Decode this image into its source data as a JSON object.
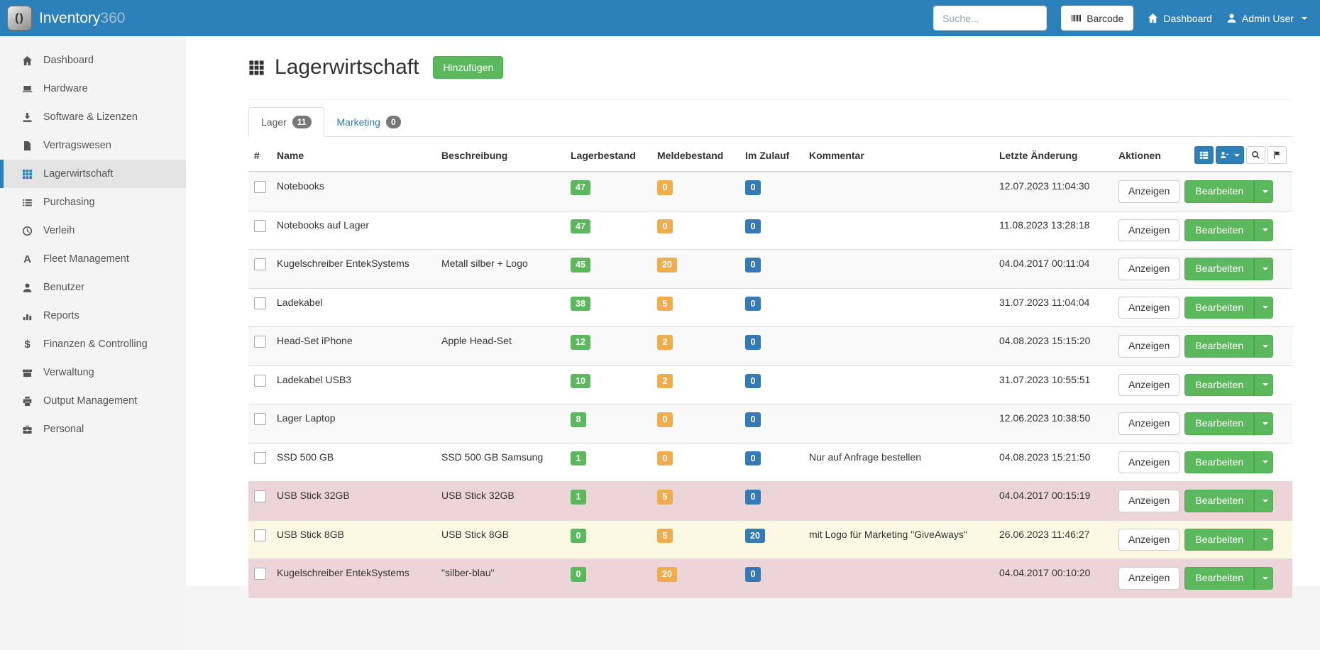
{
  "colors": {
    "navbar": "#2c81ba",
    "accent_green": "#5cb85c",
    "accent_orange": "#f0ad4e",
    "accent_blue": "#337ab7",
    "row_danger": "#ecd4d8",
    "row_warning": "#fcf8e3"
  },
  "navbar": {
    "brand_name": "Inventory",
    "brand_suffix": "360",
    "search_placeholder": "Suche...",
    "barcode_label": "Barcode",
    "dashboard_label": "Dashboard",
    "user_label": "Admin User"
  },
  "sidebar": {
    "items": [
      {
        "label": "Dashboard",
        "icon": "home",
        "active": false
      },
      {
        "label": "Hardware",
        "icon": "laptop",
        "active": false
      },
      {
        "label": "Software & Lizenzen",
        "icon": "download",
        "active": false
      },
      {
        "label": "Vertragswesen",
        "icon": "file",
        "active": false
      },
      {
        "label": "Lagerwirtschaft",
        "icon": "grid",
        "active": true
      },
      {
        "label": "Purchasing",
        "icon": "list",
        "active": false
      },
      {
        "label": "Verleih",
        "icon": "clock",
        "active": false
      },
      {
        "label": "Fleet Management",
        "icon": "font-a",
        "active": false
      },
      {
        "label": "Benutzer",
        "icon": "user",
        "active": false
      },
      {
        "label": "Reports",
        "icon": "bar-chart",
        "active": false
      },
      {
        "label": "Finanzen & Controlling",
        "icon": "dollar",
        "active": false
      },
      {
        "label": "Verwaltung",
        "icon": "archive",
        "active": false
      },
      {
        "label": "Output Management",
        "icon": "print",
        "active": false
      },
      {
        "label": "Personal",
        "icon": "briefcase",
        "active": false
      }
    ]
  },
  "page": {
    "title": "Lagerwirtschaft",
    "title_icon": "grid",
    "add_button_label": "Hinzufügen",
    "tabs": [
      {
        "label": "Lager",
        "count": "11",
        "active": true
      },
      {
        "label": "Marketing",
        "count": "0",
        "active": false
      }
    ]
  },
  "table": {
    "headers": {
      "index": "#",
      "name": "Name",
      "description": "Beschreibung",
      "stock": "Lagerbestand",
      "reorder": "Meldebestand",
      "incoming": "Im Zulauf",
      "comment": "Kommentar",
      "modified": "Letzte Änderung",
      "actions": "Aktionen"
    },
    "toolbar": [
      {
        "name": "list-view-button",
        "icon": "th-list",
        "style": "primary",
        "caret": false
      },
      {
        "name": "user-export-button",
        "icon": "user-export",
        "style": "primary",
        "caret": true
      },
      {
        "name": "search-button",
        "icon": "search",
        "style": "default",
        "caret": false
      },
      {
        "name": "flag-button",
        "icon": "flag",
        "style": "default",
        "caret": false
      }
    ],
    "action_labels": {
      "view": "Anzeigen",
      "edit": "Bearbeiten"
    },
    "rows": [
      {
        "name": "Notebooks",
        "description": "",
        "stock": "47",
        "reorder": "0",
        "incoming": "0",
        "comment": "",
        "modified": "12.07.2023 11:04:30",
        "highlight": ""
      },
      {
        "name": "Notebooks auf Lager",
        "description": "",
        "stock": "47",
        "reorder": "0",
        "incoming": "0",
        "comment": "",
        "modified": "11.08.2023 13:28:18",
        "highlight": ""
      },
      {
        "name": "Kugelschreiber EntekSystems",
        "description": "Metall silber + Logo",
        "stock": "45",
        "reorder": "20",
        "incoming": "0",
        "comment": "",
        "modified": "04.04.2017 00:11:04",
        "highlight": ""
      },
      {
        "name": "Ladekabel",
        "description": "",
        "stock": "38",
        "reorder": "5",
        "incoming": "0",
        "comment": "",
        "modified": "31.07.2023 11:04:04",
        "highlight": ""
      },
      {
        "name": "Head-Set iPhone",
        "description": "Apple Head-Set",
        "stock": "12",
        "reorder": "2",
        "incoming": "0",
        "comment": "",
        "modified": "04.08.2023 15:15:20",
        "highlight": ""
      },
      {
        "name": "Ladekabel USB3",
        "description": "",
        "stock": "10",
        "reorder": "2",
        "incoming": "0",
        "comment": "",
        "modified": "31.07.2023 10:55:51",
        "highlight": ""
      },
      {
        "name": "Lager Laptop",
        "description": "",
        "stock": "8",
        "reorder": "0",
        "incoming": "0",
        "comment": "",
        "modified": "12.06.2023 10:38:50",
        "highlight": ""
      },
      {
        "name": "SSD 500 GB",
        "description": "SSD 500 GB Samsung",
        "stock": "1",
        "reorder": "0",
        "incoming": "0",
        "comment": "Nur auf Anfrage bestellen",
        "modified": "04.08.2023 15:21:50",
        "highlight": ""
      },
      {
        "name": "USB Stick 32GB",
        "description": "USB Stick 32GB",
        "stock": "1",
        "reorder": "5",
        "incoming": "0",
        "comment": "",
        "modified": "04.04.2017 00:15:19",
        "highlight": "danger"
      },
      {
        "name": "USB Stick 8GB",
        "description": "USB Stick 8GB",
        "stock": "0",
        "reorder": "5",
        "incoming": "20",
        "comment": "mit Logo für Marketing \"GiveAways\"",
        "modified": "26.06.2023 11:46:27",
        "highlight": "warning"
      },
      {
        "name": "Kugelschreiber EntekSystems",
        "description": "\"silber-blau\"",
        "stock": "0",
        "reorder": "20",
        "incoming": "0",
        "comment": "",
        "modified": "04.04.2017 00:10:20",
        "highlight": "danger"
      }
    ]
  }
}
